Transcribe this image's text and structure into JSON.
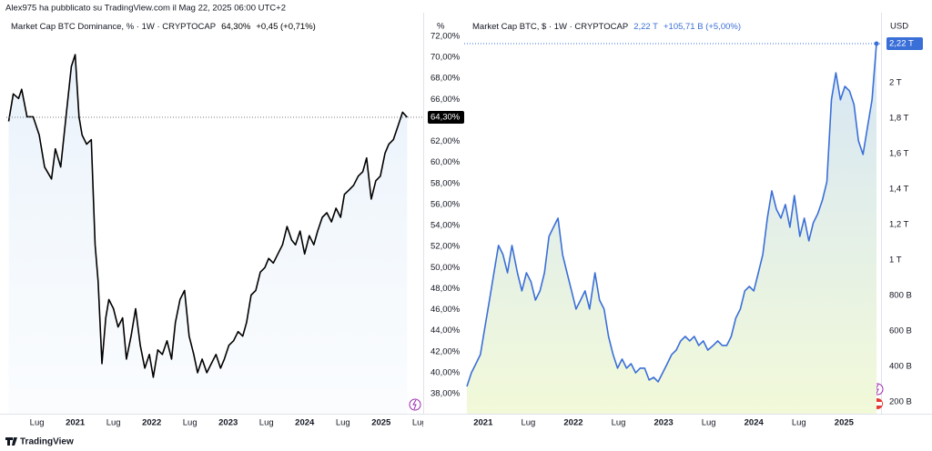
{
  "header": "Alex975 ha pubblicato su TradingView.com il Mag 22, 2025 06:00 UTC+2",
  "brand": "TradingView",
  "chart_data": [
    {
      "type": "area",
      "title": "Market Cap BTC Dominance, % · 1W · CRYPTOCAP",
      "change": "+0,45 (+0,71%)",
      "currency_label": "%",
      "last_value_label": "64,30%",
      "color": "#000000",
      "x": [
        2020.13,
        2020.19,
        2020.26,
        2020.3,
        2020.37,
        2020.45,
        2020.53,
        2020.6,
        2020.69,
        2020.74,
        2020.81,
        2020.88,
        2020.95,
        2021.0,
        2021.05,
        2021.09,
        2021.15,
        2021.21,
        2021.26,
        2021.3,
        2021.35,
        2021.4,
        2021.44,
        2021.5,
        2021.56,
        2021.62,
        2021.67,
        2021.73,
        2021.79,
        2021.85,
        2021.91,
        2021.97,
        2022.02,
        2022.08,
        2022.14,
        2022.2,
        2022.26,
        2022.31,
        2022.37,
        2022.43,
        2022.49,
        2022.55,
        2022.6,
        2022.66,
        2022.72,
        2022.78,
        2022.84,
        2022.9,
        2022.95,
        2023.01,
        2023.07,
        2023.13,
        2023.19,
        2023.24,
        2023.3,
        2023.36,
        2023.42,
        2023.48,
        2023.53,
        2023.59,
        2023.65,
        2023.71,
        2023.77,
        2023.83,
        2023.88,
        2023.94,
        2024.0,
        2024.06,
        2024.12,
        2024.17,
        2024.23,
        2024.29,
        2024.35,
        2024.41,
        2024.47,
        2024.52,
        2024.58,
        2024.64,
        2024.7,
        2024.76,
        2024.81,
        2024.87,
        2024.93,
        2024.99,
        2025.05,
        2025.1,
        2025.16,
        2025.22,
        2025.28,
        2025.34
      ],
      "values": [
        63.91,
        66.52,
        66.09,
        66.96,
        64.35,
        64.35,
        62.61,
        59.57,
        58.43,
        61.3,
        59.57,
        64.35,
        69.13,
        70.26,
        64.35,
        62.61,
        61.74,
        62.17,
        52.17,
        48.7,
        40.87,
        45.22,
        46.96,
        46.09,
        44.35,
        45.22,
        41.3,
        43.48,
        46.09,
        42.61,
        40.43,
        41.74,
        39.57,
        42.17,
        41.74,
        43.04,
        41.3,
        44.78,
        46.96,
        47.83,
        43.48,
        41.74,
        40.0,
        41.3,
        40.0,
        40.87,
        41.74,
        40.43,
        41.3,
        42.61,
        43.04,
        43.91,
        43.48,
        44.78,
        47.39,
        47.83,
        49.57,
        50.0,
        50.87,
        50.43,
        51.3,
        52.17,
        53.91,
        52.61,
        52.17,
        53.48,
        51.3,
        53.04,
        52.17,
        53.48,
        54.78,
        55.22,
        54.35,
        55.65,
        54.78,
        56.96,
        57.39,
        57.83,
        58.7,
        59.13,
        60.43,
        56.52,
        58.26,
        58.7,
        60.87,
        61.74,
        62.17,
        63.48,
        64.78,
        64.3
      ],
      "xlim": [
        2020.1,
        2025.55
      ],
      "ylim": [
        36.1,
        73.9
      ],
      "xticks": [
        {
          "value": 2020.5,
          "label": "Lug"
        },
        2021,
        {
          "value": 2021.5,
          "label": "Lug"
        },
        2022,
        {
          "value": 2022.5,
          "label": "Lug"
        },
        2023,
        {
          "value": 2023.5,
          "label": "Lug"
        },
        2024,
        {
          "value": 2024.5,
          "label": "Lug"
        },
        2025,
        {
          "value": 2025.5,
          "label": "Lug"
        }
      ],
      "yticks": [
        {
          "value": 38,
          "label": "38,00%"
        },
        {
          "value": 40,
          "label": "40,00%"
        },
        {
          "value": 42,
          "label": "42,00%"
        },
        {
          "value": 44,
          "label": "44,00%"
        },
        {
          "value": 46,
          "label": "46,00%"
        },
        {
          "value": 48,
          "label": "48,00%"
        },
        {
          "value": 50,
          "label": "50,00%"
        },
        {
          "value": 52,
          "label": "52,00%"
        },
        {
          "value": 54,
          "label": "54,00%"
        },
        {
          "value": 56,
          "label": "56,00%"
        },
        {
          "value": 58,
          "label": "58,00%"
        },
        {
          "value": 60,
          "label": "60,00%"
        },
        {
          "value": 62,
          "label": "62,00%"
        },
        {
          "value": 66,
          "label": "66,00%"
        },
        {
          "value": 68,
          "label": "68,00%"
        },
        {
          "value": 70,
          "label": "70,00%"
        },
        {
          "value": 72,
          "label": "72,00%"
        }
      ]
    },
    {
      "type": "area",
      "title": "Market Cap BTC, $ · 1W · CRYPTOCAP",
      "change": "+105,71 B (+5,00%)",
      "currency_label": "USD",
      "last_value_label": "2,22 T",
      "color": "#3a6fd8",
      "x": [
        2020.82,
        2020.87,
        2020.92,
        2020.97,
        2021.02,
        2021.07,
        2021.12,
        2021.17,
        2021.22,
        2021.27,
        2021.32,
        2021.38,
        2021.43,
        2021.48,
        2021.53,
        2021.58,
        2021.63,
        2021.68,
        2021.73,
        2021.78,
        2021.83,
        2021.88,
        2021.93,
        2021.98,
        2022.03,
        2022.08,
        2022.13,
        2022.18,
        2022.24,
        2022.29,
        2022.34,
        2022.39,
        2022.44,
        2022.49,
        2022.54,
        2022.59,
        2022.64,
        2022.69,
        2022.74,
        2022.79,
        2022.84,
        2022.89,
        2022.94,
        2022.99,
        2023.04,
        2023.09,
        2023.14,
        2023.19,
        2023.24,
        2023.29,
        2023.34,
        2023.39,
        2023.44,
        2023.49,
        2023.55,
        2023.6,
        2023.65,
        2023.7,
        2023.75,
        2023.8,
        2023.85,
        2023.9,
        2023.95,
        2024.0,
        2024.05,
        2024.1,
        2024.15,
        2024.2,
        2024.25,
        2024.3,
        2024.35,
        2024.4,
        2024.45,
        2024.51,
        2024.56,
        2024.61,
        2024.66,
        2024.71,
        2024.76,
        2024.81,
        2024.86,
        2024.91,
        2024.96,
        2025.01,
        2025.06,
        2025.11,
        2025.16,
        2025.21,
        2025.26,
        2025.31,
        2025.36
      ],
      "values": [
        287,
        364,
        415,
        467,
        621,
        774,
        928,
        1082,
        1031,
        928,
        1082,
        928,
        826,
        928,
        877,
        774,
        826,
        928,
        1133,
        1185,
        1236,
        1031,
        928,
        826,
        723,
        774,
        826,
        723,
        928,
        774,
        723,
        569,
        467,
        390,
        441,
        390,
        415,
        364,
        390,
        390,
        323,
        338,
        313,
        364,
        415,
        467,
        492,
        544,
        569,
        544,
        569,
        518,
        544,
        492,
        518,
        544,
        518,
        518,
        569,
        672,
        723,
        826,
        851,
        826,
        928,
        1031,
        1236,
        1390,
        1287,
        1236,
        1313,
        1185,
        1364,
        1133,
        1236,
        1108,
        1210,
        1262,
        1338,
        1441,
        1903,
        2056,
        1903,
        1979,
        1954,
        1877,
        1672,
        1595,
        1749,
        1903,
        2220
      ],
      "xlim": [
        2020.79,
        2025.41
      ],
      "ylim": [
        133,
        2374
      ],
      "xticks": [
        2021,
        {
          "value": 2021.5,
          "label": "Lug"
        },
        2022,
        {
          "value": 2022.5,
          "label": "Lug"
        },
        2023,
        {
          "value": 2023.5,
          "label": "Lug"
        },
        2024,
        {
          "value": 2024.5,
          "label": "Lug"
        },
        2025
      ],
      "yticks": [
        {
          "value": 200,
          "label": "200 B"
        },
        {
          "value": 400,
          "label": "400 B"
        },
        {
          "value": 600,
          "label": "600 B"
        },
        {
          "value": 800,
          "label": "800 B"
        },
        {
          "value": 1000,
          "label": "1 T"
        },
        {
          "value": 1200,
          "label": "1,2 T"
        },
        {
          "value": 1400,
          "label": "1,4 T"
        },
        {
          "value": 1600,
          "label": "1,6 T"
        },
        {
          "value": 1800,
          "label": "1,8 T"
        },
        {
          "value": 2000,
          "label": "2 T"
        }
      ]
    }
  ]
}
